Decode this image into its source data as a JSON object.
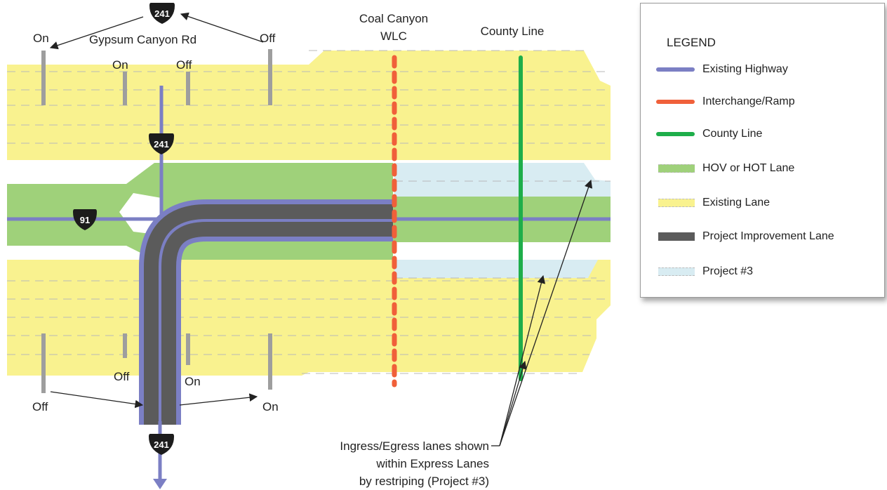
{
  "labels": {
    "gypsum_canyon_rd": "Gypsum Canyon Rd",
    "coal_canyon_line1": "Coal Canyon",
    "coal_canyon_line2": "WLC",
    "county_line": "County Line",
    "ramp_on_top_left": "On",
    "ramp_on_top_mid": "On",
    "ramp_off_top_mid": "Off",
    "ramp_off_top_right": "Off",
    "ramp_off_bottom_left": "Off",
    "ramp_off_bottom_mid": "Off",
    "ramp_on_bottom_mid": "On",
    "ramp_on_bottom_right": "On",
    "note_line1": "Ingress/Egress lanes shown",
    "note_line2": "within Express Lanes",
    "note_line3": "by restriping (Project #3)"
  },
  "shields": {
    "route_241_top": "241",
    "route_241_mid": "241",
    "route_241_bottom": "241",
    "route_91": "91"
  },
  "legend": {
    "title": "LEGEND",
    "items": [
      {
        "label": "Existing Highway",
        "symbol": "line",
        "color": "#7b7fc4"
      },
      {
        "label": "Interchange/Ramp",
        "symbol": "line",
        "color": "#f0603a"
      },
      {
        "label": "County Line",
        "symbol": "line",
        "color": "#1eae4a"
      },
      {
        "label": "HOV or HOT Lane",
        "symbol": "box",
        "color": "#9fd17a"
      },
      {
        "label": "Existing Lane",
        "symbol": "box",
        "color": "#f9f28f"
      },
      {
        "label": "Project Improvement Lane",
        "symbol": "box",
        "color": "#5b5b5b"
      },
      {
        "label": "Project #3",
        "symbol": "box",
        "color": "#d8ecf2"
      }
    ]
  },
  "colors": {
    "existing_lane": "#f9f28f",
    "hov_lane": "#9fd17a",
    "project3_lane": "#d8ecf2",
    "project_improvement": "#5b5b5b",
    "existing_highway": "#7b7fc4",
    "interchange": "#f0603a",
    "county_line": "#1eae4a",
    "ramp": "#9e9e9e",
    "shield": "#1c1c1c"
  }
}
